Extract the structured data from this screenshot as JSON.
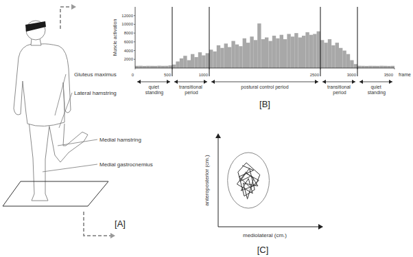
{
  "diagram": {
    "title": "[A]",
    "labels": [
      "Gluteus maximus",
      "Lateral hamstring",
      "Medial hamstring",
      "Medial gastrocnemius"
    ]
  },
  "chart_data": [
    {
      "type": "bar",
      "title": "[B]",
      "xlabel": "frame",
      "ylabel": "Muscle activation",
      "color": "#a8a8a8",
      "x": [
        0,
        50,
        100,
        150,
        200,
        250,
        300,
        350,
        400,
        450,
        500,
        550,
        600,
        650,
        700,
        750,
        800,
        850,
        900,
        950,
        1000,
        1050,
        1100,
        1150,
        1200,
        1250,
        1300,
        1350,
        1400,
        1450,
        1500,
        1550,
        1600,
        1650,
        1700,
        1750,
        1800,
        1850,
        1900,
        1950,
        2000,
        2050,
        2100,
        2150,
        2200,
        2250,
        2300,
        2350,
        2400,
        2450,
        2500,
        2550,
        2600,
        2650,
        2700,
        2750,
        2800,
        2850,
        2900,
        2950,
        3000,
        3050,
        3100,
        3150,
        3200,
        3250,
        3300,
        3350,
        3400,
        3450,
        3500
      ],
      "values": [
        500,
        520,
        480,
        510,
        500,
        490,
        530,
        500,
        510,
        600,
        800,
        1500,
        2200,
        2800,
        1800,
        3200,
        2500,
        3600,
        2900,
        3400,
        4200,
        3800,
        5200,
        4600,
        5600,
        4800,
        6200,
        5400,
        5000,
        6800,
        5800,
        7200,
        6400,
        10200,
        6600,
        7000,
        6200,
        7400,
        6800,
        7600,
        6600,
        7800,
        7200,
        8000,
        7000,
        7400,
        8200,
        7600,
        7800,
        8400,
        6400,
        5800,
        6600,
        5200,
        5800,
        4600,
        4000,
        3200,
        1800,
        900,
        520,
        500,
        480,
        510,
        500,
        490,
        520,
        500,
        480,
        500,
        500
      ],
      "xlim": [
        0,
        3500
      ],
      "ylim": [
        0,
        14000
      ],
      "xticks": [
        0,
        500,
        1000,
        2500,
        3000,
        3500
      ],
      "yticks": [
        2000,
        4000,
        6000,
        8000,
        10000,
        12000
      ],
      "annotations": [
        {
          "label": "quiet standing",
          "start": 0,
          "end": 500
        },
        {
          "label": "transitional period",
          "start": 500,
          "end": 1000
        },
        {
          "label": "postural control period",
          "start": 1000,
          "end": 2500
        },
        {
          "label": "transitional period",
          "start": 2500,
          "end": 3000
        },
        {
          "label": "quiet standing",
          "start": 3000,
          "end": 3500
        }
      ]
    },
    {
      "type": "line",
      "title": "[C]",
      "xlabel": "mediolateral (cm.)",
      "ylabel": "anteroposterior (cm.)",
      "color": "#333333",
      "x": [
        2.3,
        3.4,
        2.0,
        3.1,
        3.9,
        2.6,
        1.8,
        3.3,
        2.9,
        2.2,
        3.6,
        4.0,
        2.7,
        1.9,
        2.5,
        3.5,
        3.0,
        2.1,
        3.2,
        3.8,
        2.4,
        2.8,
        3.4,
        2.6
      ],
      "values": [
        6.6,
        6.1,
        5.4,
        4.2,
        5.0,
        5.8,
        4.6,
        3.6,
        5.2,
        3.9,
        4.5,
        5.6,
        6.9,
        5.9,
        3.3,
        4.0,
        6.3,
        4.9,
        5.5,
        4.4,
        4.7,
        3.0,
        5.2,
        5.9
      ],
      "xlim": [
        0,
        10
      ],
      "ylim": [
        0,
        10
      ],
      "tick_labels": false,
      "ellipse": {
        "cx": 2.9,
        "cy": 5.0,
        "rx": 2.0,
        "ry": 3.0
      }
    }
  ]
}
